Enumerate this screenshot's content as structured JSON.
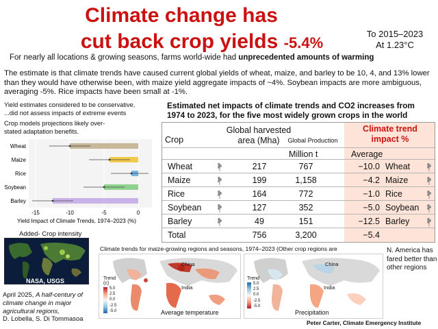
{
  "title": {
    "line1": "Climate change has",
    "line2": "cut back crop yields",
    "pct": "-5.4%"
  },
  "period": {
    "line1": "To 2015–2023",
    "line2": "At 1.23°C"
  },
  "subhead": {
    "text": "For nearly all locations & growing seasons, farms world-wide had ",
    "bold": "unprecedented amounts of warming"
  },
  "paragraph": "The estimate is that climate trends have caused current global yields of wheat, maize, and barley to be 10, 4, and 13% lower than they would have otherwise been, with maize yield aggregate impacts of ~4%. Soybean impacts are more ambiguous, averaging -5%. Rice impacts have been small at -1%.",
  "notes": {
    "line1": "Yield estimates considered to be conservative,",
    "line2": "...did not assess impacts of extreme events",
    "line3": "Crop models projections likely over-",
    "line4": "stated adaptation benefits."
  },
  "chart_data": {
    "type": "bar",
    "categories": [
      "Wheat",
      "Maize",
      "Rice",
      "Soybean",
      "Barley"
    ],
    "series": [
      {
        "values": [
          -10.0,
          -4.2,
          -1.0,
          -5.0,
          -12.5
        ]
      }
    ],
    "xlabel": "Yield Impact of Climate Trends, 1974–2023 (%)",
    "xticks": [
      "-15",
      "-10",
      "-5",
      "0"
    ],
    "xlim": [
      -16,
      2
    ],
    "colors": [
      "#c8b89a",
      "#f2c94c",
      "#6fb7e0",
      "#8fd18f",
      "#c9b3e6"
    ],
    "grid": true
  },
  "table": {
    "title_line1": "Estimated net impacts of climate trends and CO2 increases from",
    "title_line2": "1974 to 2023, for the five most widely grown crops in the world",
    "headers": {
      "crop": "Crop",
      "area_l1": "Global harvested",
      "area_l2": "area (Mha)",
      "prod": "Global Production",
      "prod_unit": "Million t",
      "impact_l1": "Climate trend",
      "impact_l2": "impact %",
      "avg": "Average"
    },
    "rows": [
      {
        "crop": "Wheat",
        "area": "217",
        "prod": "767",
        "avg": "−10.0",
        "name": "Wheat"
      },
      {
        "crop": "Maize",
        "area": "199",
        "prod": "1,158",
        "avg": "−4.2",
        "name": "Maize"
      },
      {
        "crop": "Rice",
        "area": "164",
        "prod": "772",
        "avg": "−1.0",
        "name": "Rice"
      },
      {
        "crop": "Soybean",
        "area": "127",
        "prod": "352",
        "avg": "−5.0",
        "name": "Soybean"
      },
      {
        "crop": "Barley",
        "area": "49",
        "prod": "151",
        "avg": "−12.5",
        "name": "Barley"
      },
      {
        "crop": "Total",
        "area": "756",
        "prod": "3,200",
        "avg": "−5.4",
        "name": ""
      }
    ],
    "impact_color": "#cc1111"
  },
  "intensity": {
    "label": "Added- Crop intensity",
    "source": "NASA, USGS"
  },
  "citation": {
    "line1": "April 2025, ",
    "italic": "A half-century of climate change in major agricultural  regions,",
    "authors": "D. Lobella,  S. Di Tommasoa"
  },
  "maps": {
    "title": "Climate trends for maize-growing regions and seasons, 1974–2023 (Other crop regions are similar)",
    "left_label": "Average temperature",
    "right_label": "Precipitation",
    "trend_title": "Trend",
    "trend_unit": "(c)",
    "ticks_temp": [
      "5.0",
      "2.5",
      "0.0",
      "-2.5",
      "-5.0"
    ],
    "ticks_precip": [
      "5.0",
      "2.5",
      "0.0",
      "-2.5",
      "-5.0"
    ],
    "place_china": "China",
    "place_india": "India"
  },
  "na_note": "N. America has fared better than other regions",
  "credit": "Peter Carter, Climate Emergency Institute"
}
